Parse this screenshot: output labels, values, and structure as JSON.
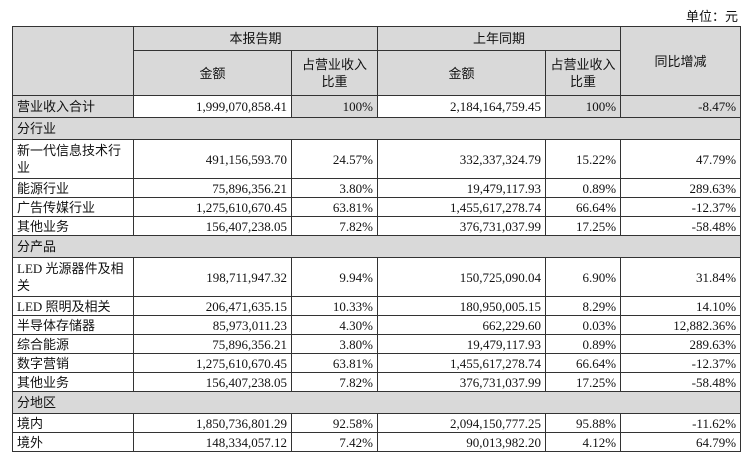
{
  "unit_label": "单位：元",
  "header": {
    "current_period": "本报告期",
    "prior_period": "上年同期",
    "amount": "金额",
    "share_current": "占营业收入比重",
    "share_prior": "占营业收入比重",
    "yoy": "同比增减"
  },
  "total": {
    "label": "营业收入合计",
    "cur_amount": "1,999,070,858.41",
    "cur_share": "100%",
    "prior_amount": "2,184,164,759.45",
    "prior_share": "100%",
    "yoy": "-8.47%"
  },
  "sections": [
    {
      "title": "分行业",
      "rows": [
        {
          "label": "新一代信息技术行业",
          "cur_amount": "491,156,593.70",
          "cur_share": "24.57%",
          "prior_amount": "332,337,324.79",
          "prior_share": "15.22%",
          "yoy": "47.79%"
        },
        {
          "label": "能源行业",
          "cur_amount": "75,896,356.21",
          "cur_share": "3.80%",
          "prior_amount": "19,479,117.93",
          "prior_share": "0.89%",
          "yoy": "289.63%"
        },
        {
          "label": "广告传媒行业",
          "cur_amount": "1,275,610,670.45",
          "cur_share": "63.81%",
          "prior_amount": "1,455,617,278.74",
          "prior_share": "66.64%",
          "yoy": "-12.37%"
        },
        {
          "label": "其他业务",
          "cur_amount": "156,407,238.05",
          "cur_share": "7.82%",
          "prior_amount": "376,731,037.99",
          "prior_share": "17.25%",
          "yoy": "-58.48%"
        }
      ]
    },
    {
      "title": "分产品",
      "rows": [
        {
          "label": "LED 光源器件及相关",
          "cur_amount": "198,711,947.32",
          "cur_share": "9.94%",
          "prior_amount": "150,725,090.04",
          "prior_share": "6.90%",
          "yoy": "31.84%"
        },
        {
          "label": "LED 照明及相关",
          "cur_amount": "206,471,635.15",
          "cur_share": "10.33%",
          "prior_amount": "180,950,005.15",
          "prior_share": "8.29%",
          "yoy": "14.10%"
        },
        {
          "label": "半导体存储器",
          "cur_amount": "85,973,011.23",
          "cur_share": "4.30%",
          "prior_amount": "662,229.60",
          "prior_share": "0.03%",
          "yoy": "12,882.36%"
        },
        {
          "label": "综合能源",
          "cur_amount": "75,896,356.21",
          "cur_share": "3.80%",
          "prior_amount": "19,479,117.93",
          "prior_share": "0.89%",
          "yoy": "289.63%"
        },
        {
          "label": "数字营销",
          "cur_amount": "1,275,610,670.45",
          "cur_share": "63.81%",
          "prior_amount": "1,455,617,278.74",
          "prior_share": "66.64%",
          "yoy": "-12.37%"
        },
        {
          "label": "其他业务",
          "cur_amount": "156,407,238.05",
          "cur_share": "7.82%",
          "prior_amount": "376,731,037.99",
          "prior_share": "17.25%",
          "yoy": "-58.48%"
        }
      ]
    },
    {
      "title": "分地区",
      "rows": [
        {
          "label": "境内",
          "cur_amount": "1,850,736,801.29",
          "cur_share": "92.58%",
          "prior_amount": "2,094,150,777.25",
          "prior_share": "95.88%",
          "yoy": "-11.62%"
        },
        {
          "label": "境外",
          "cur_amount": "148,334,057.12",
          "cur_share": "7.42%",
          "prior_amount": "90,013,982.20",
          "prior_share": "4.12%",
          "yoy": "64.79%"
        }
      ]
    }
  ]
}
